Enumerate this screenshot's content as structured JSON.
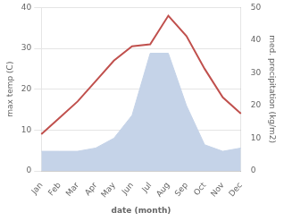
{
  "chart_data": {
    "type": "line",
    "xlabel": "date (month)",
    "ylabel": "max temp (C)",
    "y2label": "med. precipitation (kg/m2)",
    "categories": [
      "Jan",
      "Feb",
      "Mar",
      "Apr",
      "May",
      "Jun",
      "Jul",
      "Aug",
      "Sep",
      "Oct",
      "Nov",
      "Dec"
    ],
    "series": [
      {
        "type": "line",
        "color": "#c0504d",
        "values": [
          9,
          13,
          17,
          22,
          27,
          30.5,
          31,
          38,
          33,
          25,
          18,
          14
        ]
      },
      {
        "type": "area",
        "color": "#c5d3e8",
        "axis": "y2",
        "values": [
          6,
          6,
          6,
          7,
          10,
          17,
          36,
          36,
          20,
          8,
          6,
          7
        ]
      }
    ],
    "ylim": [
      0,
      40
    ],
    "yticks": [
      0,
      10,
      20,
      30,
      40
    ],
    "y2lim": [
      0,
      50
    ],
    "y2ticks": [
      0,
      10,
      20,
      30,
      40,
      50
    ],
    "grid": true
  }
}
